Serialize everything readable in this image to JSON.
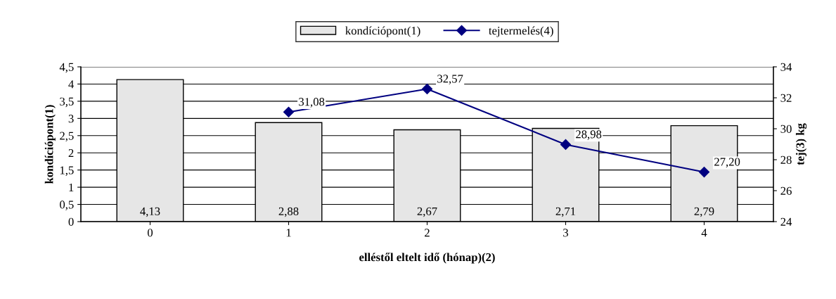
{
  "chart_data": {
    "type": "bar",
    "xlabel": "elléstől eltelt idő (hónap)(2)",
    "ylabel": "kondíciópont(1)",
    "y2label": "tej(3) kg",
    "categories": [
      "0",
      "1",
      "2",
      "3",
      "4"
    ],
    "series": [
      {
        "name": "kondíciópont(1)",
        "color": "#e6e6e6",
        "values": [
          4.13,
          2.88,
          2.67,
          2.71,
          2.79
        ],
        "value_labels": [
          "4,13",
          "2,88",
          "2,67",
          "2,71",
          "2,79"
        ]
      },
      {
        "name": "tejtermelés(4)",
        "type": "line",
        "axis": "y2",
        "color": "#000080",
        "marker": "diamond",
        "values": [
          null,
          31.08,
          32.57,
          28.98,
          27.2
        ],
        "value_labels": [
          null,
          "31,08",
          "32,57",
          "28,98",
          "27,20"
        ]
      }
    ],
    "ylim": [
      0,
      4.5
    ],
    "yticks": [
      0,
      {
        "value": 0.5,
        "label": "0,5"
      },
      1,
      {
        "value": 1.5,
        "label": "1,5"
      },
      2,
      {
        "value": 2.5,
        "label": "2,5"
      },
      3,
      {
        "value": 3.5,
        "label": "3,5"
      },
      4,
      {
        "value": 4.5,
        "label": "4,5"
      }
    ],
    "y2lim": [
      24,
      34
    ],
    "y2ticks": [
      24,
      26,
      28,
      30,
      32,
      34
    ],
    "grid": "y",
    "legend": "top"
  }
}
